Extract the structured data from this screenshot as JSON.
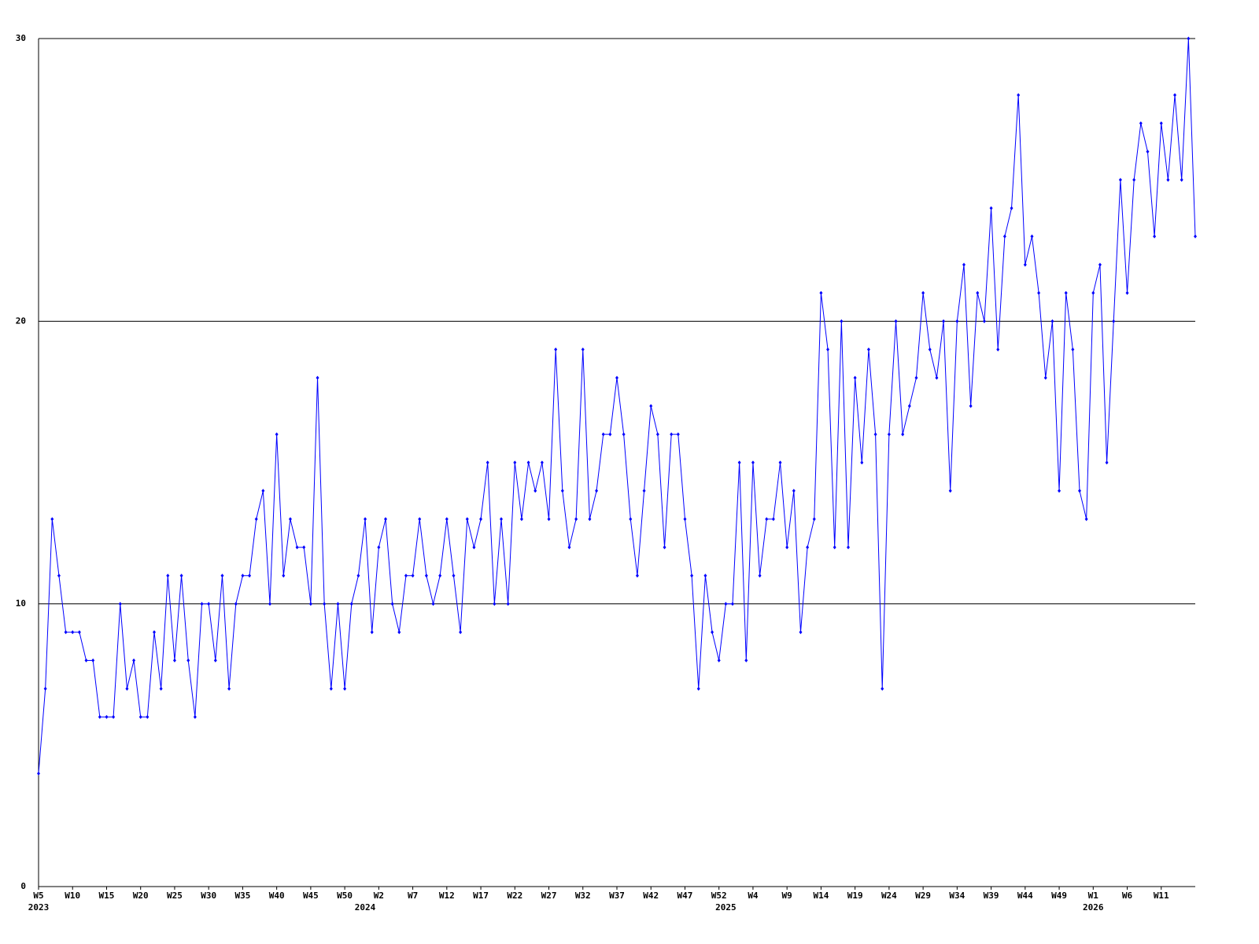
{
  "chart_data": {
    "type": "line",
    "categories": [
      "W5",
      null,
      null,
      null,
      null,
      "W10",
      null,
      null,
      null,
      null,
      "W15",
      null,
      null,
      null,
      null,
      "W20",
      null,
      null,
      null,
      null,
      "W25",
      null,
      null,
      null,
      null,
      "W30",
      null,
      null,
      null,
      null,
      "W35",
      null,
      null,
      null,
      null,
      "W40",
      null,
      null,
      null,
      null,
      "W45",
      null,
      null,
      null,
      null,
      "W50",
      null,
      null,
      null,
      null,
      "W2",
      null,
      null,
      null,
      null,
      "W7",
      null,
      null,
      null,
      null,
      "W12",
      null,
      null,
      null,
      null,
      "W17",
      null,
      null,
      null,
      null,
      "W22",
      null,
      null,
      null,
      null,
      "W27",
      null,
      null,
      null,
      null,
      "W32",
      null,
      null,
      null,
      null,
      "W37",
      null,
      null,
      null,
      null,
      "W42",
      null,
      null,
      null,
      null,
      "W47",
      null,
      null,
      null,
      null,
      "W52",
      null,
      null,
      null,
      null,
      "W4",
      null,
      null,
      null,
      null,
      "W9",
      null,
      null,
      null,
      null,
      "W14",
      null,
      null,
      null,
      null,
      "W19",
      null,
      null,
      null,
      null,
      "W24",
      null,
      null,
      null,
      null,
      "W29",
      null,
      null,
      null,
      null,
      "W34",
      null,
      null,
      null,
      null,
      "W39",
      null,
      null,
      null,
      null,
      "W44",
      null,
      null,
      null,
      null,
      "W49",
      null,
      null,
      null,
      null,
      "W1",
      null,
      null,
      null,
      null,
      "W6",
      null,
      null,
      null,
      null,
      "W11",
      null,
      null,
      null,
      null,
      null
    ],
    "year_labels": [
      {
        "index": 0,
        "label": "2023"
      },
      {
        "index": 48,
        "label": "2024"
      },
      {
        "index": 101,
        "label": "2025"
      },
      {
        "index": 155,
        "label": "2026"
      }
    ],
    "series": [
      {
        "color": "#0000ff",
        "values": [
          4,
          7,
          13,
          11,
          9,
          9,
          9,
          8,
          8,
          6,
          6,
          6,
          10,
          7,
          8,
          6,
          6,
          9,
          7,
          11,
          8,
          11,
          8,
          6,
          10,
          10,
          8,
          11,
          7,
          10,
          11,
          11,
          13,
          14,
          10,
          16,
          11,
          13,
          12,
          12,
          10,
          18,
          10,
          7,
          10,
          7,
          10,
          11,
          13,
          9,
          12,
          13,
          10,
          9,
          11,
          11,
          13,
          11,
          10,
          11,
          13,
          11,
          9,
          13,
          12,
          13,
          15,
          10,
          13,
          10,
          15,
          13,
          15,
          14,
          15,
          13,
          19,
          14,
          12,
          13,
          19,
          13,
          14,
          16,
          16,
          18,
          16,
          13,
          11,
          14,
          17,
          16,
          12,
          16,
          16,
          13,
          11,
          7,
          11,
          9,
          8,
          10,
          10,
          15,
          8,
          15,
          11,
          13,
          13,
          15,
          12,
          14,
          9,
          12,
          13,
          21,
          19,
          12,
          20,
          12,
          18,
          15,
          19,
          16,
          7,
          16,
          20,
          16,
          17,
          18,
          21,
          19,
          18,
          20,
          14,
          20,
          22,
          17,
          21,
          20,
          24,
          19,
          23,
          24,
          28,
          22,
          23,
          21,
          18,
          20,
          14,
          21,
          19,
          14,
          13,
          21,
          22,
          15,
          20,
          25,
          21,
          25,
          27,
          26,
          23,
          27,
          25,
          28,
          25,
          30,
          23
        ]
      }
    ],
    "ylim": [
      0,
      30
    ],
    "yticks": [
      0,
      10,
      20,
      30
    ],
    "grid": true
  }
}
